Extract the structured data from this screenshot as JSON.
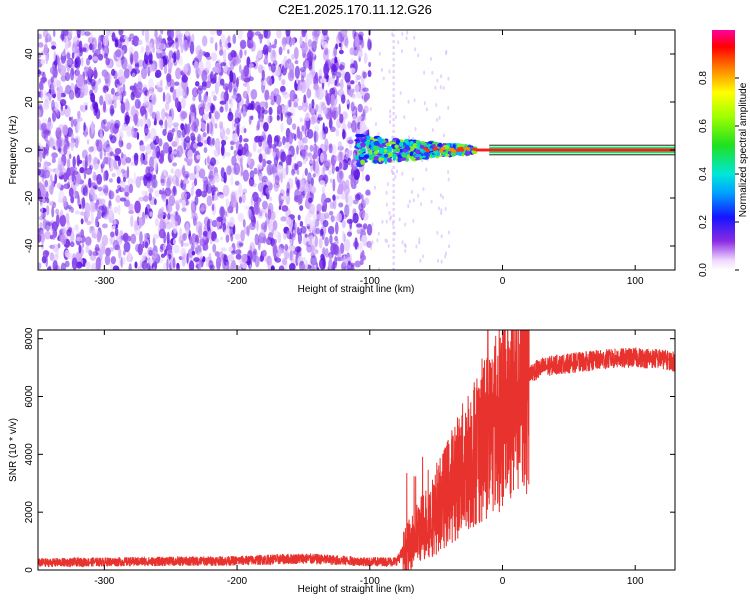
{
  "figure": {
    "title": "C2E1.2025.170.11.12.G26"
  },
  "colors": {
    "noise_violet": "#6a1de0",
    "snr_line": "#e8322d",
    "carrier_red": "#ff1a1a",
    "carrier_green": "#1fe06a"
  },
  "chart_data": [
    {
      "type": "heatmap",
      "xlabel": "Height of straight line (km)",
      "ylabel": "Frequency (Hz)",
      "xlim": [
        -350,
        130
      ],
      "ylim": [
        -50,
        50
      ],
      "xticks": [
        -300,
        -200,
        -100,
        0,
        100
      ],
      "yticks": [
        -40,
        -20,
        0,
        20,
        40
      ],
      "grid": false,
      "description_regions": [
        {
          "x": [
            -350,
            -100
          ],
          "y": [
            -50,
            50
          ],
          "amplitude": 0.15
        },
        {
          "x": [
            -110,
            -20
          ],
          "y": [
            -4,
            4
          ],
          "amplitude": 0.45
        },
        {
          "x": [
            -20,
            130
          ],
          "y": [
            -1,
            1
          ],
          "amplitude": 0.95
        }
      ],
      "colorbar": {
        "label": "Normalized spectral amplitude",
        "range": [
          0.0,
          1.0
        ],
        "ticks": [
          0.0,
          0.2,
          0.4,
          0.6,
          0.8
        ]
      }
    },
    {
      "type": "line",
      "xlabel": "Height of straight line (km)",
      "ylabel": "SNR (10 * v/v)",
      "xlim": [
        -350,
        130
      ],
      "ylim": [
        0,
        8300
      ],
      "xticks": [
        -300,
        -200,
        -100,
        0,
        100
      ],
      "yticks": [
        0,
        2000,
        4000,
        6000,
        8000
      ],
      "grid": false,
      "series": [
        {
          "x": [
            -350,
            -300,
            -250,
            -200,
            -150,
            -100,
            -80,
            -70,
            -60,
            -50,
            -40,
            -30,
            -20,
            -10,
            0,
            10,
            20,
            30,
            40,
            60,
            80,
            100,
            120,
            130
          ],
          "values": [
            250,
            280,
            300,
            320,
            400,
            280,
            300,
            900,
            1500,
            2000,
            2800,
            3500,
            4200,
            4800,
            5500,
            6200,
            6800,
            7000,
            7100,
            7200,
            7300,
            7350,
            7300,
            7200
          ]
        }
      ]
    }
  ]
}
